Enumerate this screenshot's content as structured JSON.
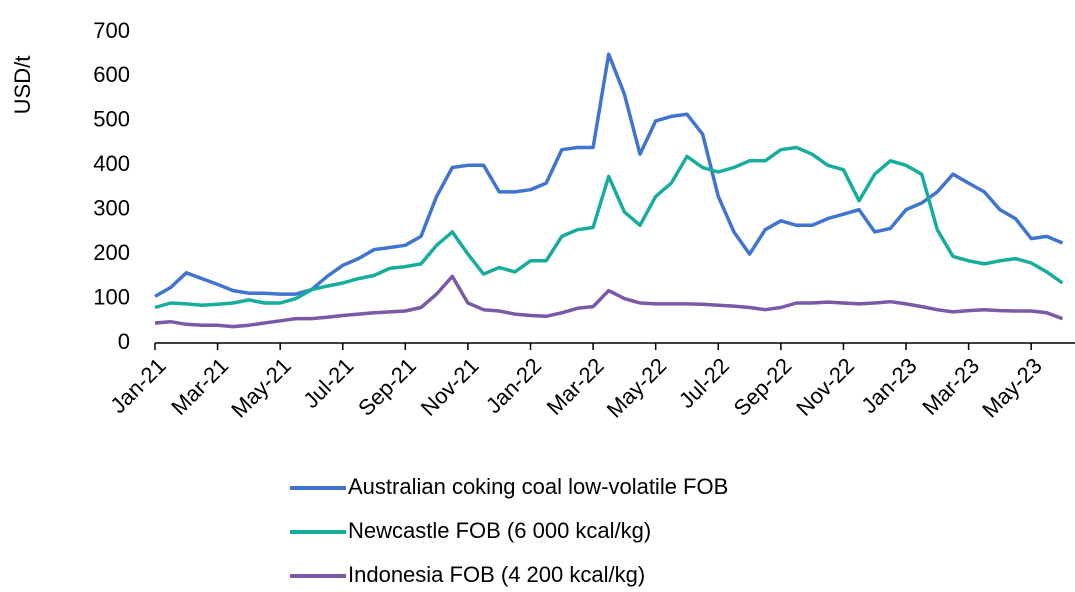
{
  "chart_data": {
    "type": "line",
    "y_label": "USD/t",
    "categories": [
      "Jan-21",
      null,
      null,
      null,
      "Mar-21",
      null,
      null,
      null,
      "May-21",
      null,
      null,
      null,
      "Jul-21",
      null,
      null,
      null,
      "Sep-21",
      null,
      null,
      null,
      "Nov-21",
      null,
      null,
      null,
      "Jan-22",
      null,
      null,
      null,
      "Mar-22",
      null,
      null,
      null,
      "May-22",
      null,
      null,
      null,
      "Jul-22",
      null,
      null,
      null,
      "Sep-22",
      null,
      null,
      null,
      "Nov-22",
      null,
      null,
      null,
      "Jan-23",
      null,
      null,
      null,
      "Mar-23",
      null,
      null,
      null,
      "May-23",
      null,
      null
    ],
    "series": [
      {
        "name": "Australian coking coal low-volatile FOB",
        "color": "#3f74d0",
        "values": [
          105,
          125,
          158,
          145,
          132,
          118,
          112,
          112,
          110,
          110,
          120,
          150,
          175,
          190,
          210,
          215,
          220,
          240,
          330,
          395,
          400,
          400,
          340,
          340,
          345,
          360,
          435,
          440,
          440,
          650,
          560,
          425,
          500,
          510,
          515,
          470,
          330,
          250,
          200,
          255,
          275,
          265,
          265,
          280,
          290,
          300,
          250,
          258,
          300,
          315,
          340,
          380,
          360,
          340,
          300,
          280,
          235,
          240,
          225
        ]
      },
      {
        "name": "Newcastle FOB (6 000 kcal/kg)",
        "color": "#16ad9c",
        "values": [
          80,
          90,
          88,
          85,
          87,
          90,
          97,
          90,
          90,
          100,
          120,
          128,
          135,
          145,
          152,
          168,
          172,
          178,
          220,
          250,
          200,
          155,
          170,
          160,
          185,
          185,
          240,
          255,
          260,
          375,
          295,
          265,
          330,
          360,
          420,
          395,
          385,
          395,
          410,
          410,
          435,
          440,
          425,
          400,
          390,
          320,
          380,
          410,
          400,
          380,
          255,
          195,
          185,
          178,
          185,
          190,
          180,
          160,
          135
        ]
      },
      {
        "name": "Indonesia FOB (4 200 kcal/kg)",
        "color": "#7a5aa6",
        "values": [
          45,
          48,
          42,
          40,
          40,
          37,
          40,
          45,
          50,
          55,
          55,
          58,
          62,
          65,
          68,
          70,
          72,
          80,
          110,
          150,
          90,
          75,
          72,
          65,
          62,
          60,
          68,
          78,
          82,
          118,
          100,
          90,
          88,
          88,
          88,
          87,
          85,
          83,
          80,
          75,
          80,
          90,
          90,
          92,
          90,
          88,
          90,
          93,
          88,
          82,
          75,
          70,
          73,
          75,
          73,
          72,
          72,
          68,
          55
        ]
      }
    ],
    "ylim": [
      0,
      700
    ],
    "yticks": [
      0,
      100,
      200,
      300,
      400,
      500,
      600,
      700
    ]
  }
}
